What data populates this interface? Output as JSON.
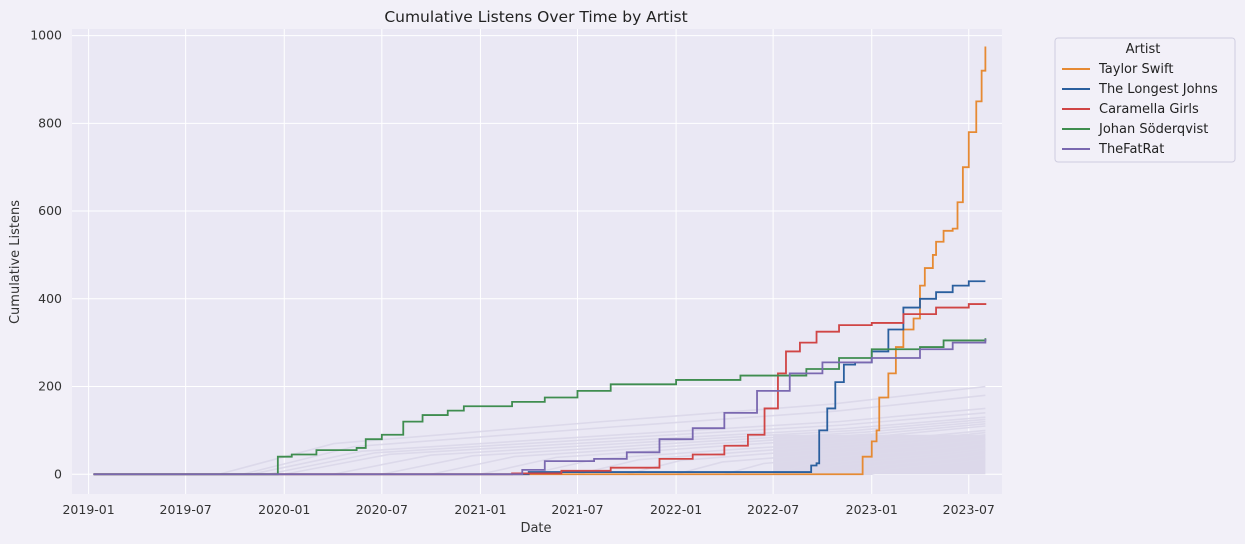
{
  "chart_data": {
    "type": "line",
    "title": "Cumulative Listens Over Time by Artist",
    "xlabel": "Date",
    "ylabel": "Cumulative Listens",
    "xlim": [
      "2018-12-01",
      "2023-09-01"
    ],
    "ylim": [
      -45,
      1015
    ],
    "x_ticks": [
      "2019-01",
      "2019-07",
      "2020-01",
      "2020-07",
      "2021-01",
      "2021-07",
      "2022-01",
      "2022-07",
      "2023-01",
      "2023-07"
    ],
    "y_ticks": [
      0,
      200,
      400,
      600,
      800,
      1000
    ],
    "grid": true,
    "legend": {
      "title": "Artist",
      "placement": "outside-top-right"
    },
    "series": [
      {
        "name": "Taylor Swift",
        "color": "#e68a33",
        "points": [
          [
            "2019-01-10",
            0
          ],
          [
            "2022-12-05",
            0
          ],
          [
            "2022-12-15",
            40
          ],
          [
            "2023-01-01",
            75
          ],
          [
            "2023-01-10",
            100
          ],
          [
            "2023-01-15",
            175
          ],
          [
            "2023-02-01",
            230
          ],
          [
            "2023-02-15",
            290
          ],
          [
            "2023-03-01",
            330
          ],
          [
            "2023-03-20",
            355
          ],
          [
            "2023-04-01",
            430
          ],
          [
            "2023-04-10",
            470
          ],
          [
            "2023-04-25",
            500
          ],
          [
            "2023-05-01",
            530
          ],
          [
            "2023-05-15",
            555
          ],
          [
            "2023-06-01",
            560
          ],
          [
            "2023-06-10",
            620
          ],
          [
            "2023-06-20",
            700
          ],
          [
            "2023-07-01",
            780
          ],
          [
            "2023-07-15",
            850
          ],
          [
            "2023-07-25",
            920
          ],
          [
            "2023-08-01",
            975
          ]
        ]
      },
      {
        "name": "The Longest Johns",
        "color": "#2a5f9e",
        "points": [
          [
            "2019-01-10",
            0
          ],
          [
            "2021-04-01",
            5
          ],
          [
            "2022-08-20",
            5
          ],
          [
            "2022-09-10",
            20
          ],
          [
            "2022-09-20",
            25
          ],
          [
            "2022-09-25",
            100
          ],
          [
            "2022-10-10",
            150
          ],
          [
            "2022-10-25",
            210
          ],
          [
            "2022-11-10",
            250
          ],
          [
            "2022-12-01",
            255
          ],
          [
            "2023-01-01",
            280
          ],
          [
            "2023-02-01",
            330
          ],
          [
            "2023-03-01",
            380
          ],
          [
            "2023-04-01",
            400
          ],
          [
            "2023-05-01",
            415
          ],
          [
            "2023-06-01",
            430
          ],
          [
            "2023-07-01",
            440
          ],
          [
            "2023-08-01",
            440
          ]
        ]
      },
      {
        "name": "Caramella Girls",
        "color": "#d04545",
        "points": [
          [
            "2019-01-10",
            0
          ],
          [
            "2021-03-01",
            2
          ],
          [
            "2021-06-01",
            8
          ],
          [
            "2021-09-01",
            15
          ],
          [
            "2021-12-01",
            35
          ],
          [
            "2022-02-01",
            45
          ],
          [
            "2022-04-01",
            65
          ],
          [
            "2022-05-15",
            90
          ],
          [
            "2022-06-15",
            150
          ],
          [
            "2022-07-10",
            230
          ],
          [
            "2022-07-25",
            280
          ],
          [
            "2022-08-20",
            300
          ],
          [
            "2022-09-20",
            325
          ],
          [
            "2022-11-01",
            340
          ],
          [
            "2023-01-01",
            345
          ],
          [
            "2023-03-01",
            365
          ],
          [
            "2023-05-01",
            380
          ],
          [
            "2023-07-01",
            388
          ],
          [
            "2023-08-01",
            390
          ]
        ]
      },
      {
        "name": "Johan Söderqvist",
        "color": "#3f8d4f",
        "points": [
          [
            "2019-01-10",
            0
          ],
          [
            "2019-12-15",
            0
          ],
          [
            "2019-12-20",
            40
          ],
          [
            "2020-01-15",
            45
          ],
          [
            "2020-03-01",
            55
          ],
          [
            "2020-05-15",
            60
          ],
          [
            "2020-06-01",
            80
          ],
          [
            "2020-07-01",
            90
          ],
          [
            "2020-08-10",
            120
          ],
          [
            "2020-09-15",
            135
          ],
          [
            "2020-11-01",
            145
          ],
          [
            "2020-12-01",
            155
          ],
          [
            "2021-03-01",
            165
          ],
          [
            "2021-05-01",
            175
          ],
          [
            "2021-07-01",
            190
          ],
          [
            "2021-09-01",
            205
          ],
          [
            "2022-01-01",
            215
          ],
          [
            "2022-05-01",
            225
          ],
          [
            "2022-09-01",
            240
          ],
          [
            "2022-11-01",
            265
          ],
          [
            "2023-01-01",
            285
          ],
          [
            "2023-04-01",
            290
          ],
          [
            "2023-05-15",
            305
          ],
          [
            "2023-08-01",
            310
          ]
        ]
      },
      {
        "name": "TheFatRat",
        "color": "#7a68b0",
        "points": [
          [
            "2019-01-10",
            0
          ],
          [
            "2021-03-15",
            0
          ],
          [
            "2021-03-20",
            10
          ],
          [
            "2021-05-01",
            30
          ],
          [
            "2021-08-01",
            35
          ],
          [
            "2021-10-01",
            50
          ],
          [
            "2021-12-01",
            80
          ],
          [
            "2022-02-01",
            105
          ],
          [
            "2022-04-01",
            140
          ],
          [
            "2022-06-01",
            190
          ],
          [
            "2022-08-01",
            230
          ],
          [
            "2022-10-01",
            255
          ],
          [
            "2023-01-01",
            265
          ],
          [
            "2023-04-01",
            285
          ],
          [
            "2023-06-01",
            300
          ],
          [
            "2023-08-01",
            308
          ]
        ]
      }
    ]
  }
}
